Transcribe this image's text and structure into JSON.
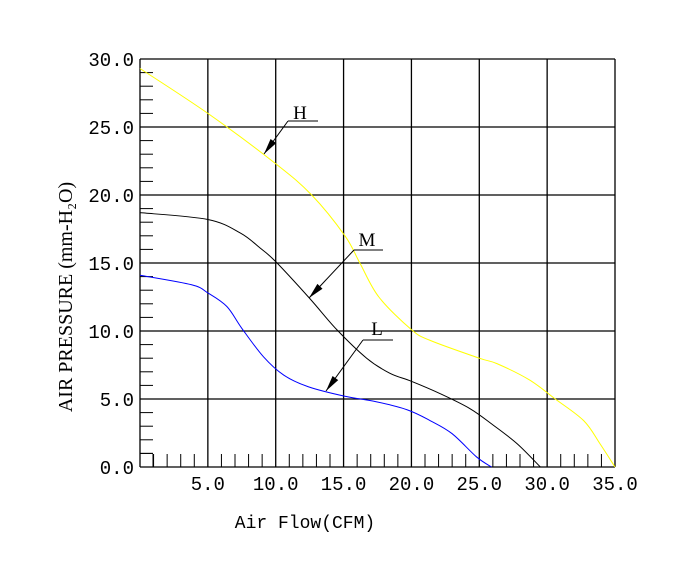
{
  "chart_data": {
    "type": "line",
    "title": "",
    "xlabel": "Air Flow(CFM)",
    "ylabel": "AIR PRESSURE (mm-H₂O)",
    "xlim": [
      0,
      35
    ],
    "ylim": [
      0,
      30
    ],
    "grid": true,
    "x_ticks": [
      "5.0",
      "10.0",
      "15.0",
      "20.0",
      "25.0",
      "30.0",
      "35.0"
    ],
    "y_ticks": [
      "0.0",
      "5.0",
      "10.0",
      "15.0",
      "20.0",
      "25.0",
      "30.0"
    ],
    "series": [
      {
        "name": "H",
        "color": "#ffff00",
        "x": [
          0,
          5,
          10,
          12.65,
          15.1,
          16.2,
          17.6,
          20,
          21.4,
          25,
          26.3,
          28.7,
          30.6,
          32.7,
          33.9,
          35
        ],
        "y": [
          29.3,
          26.0,
          22.3,
          20.0,
          17.0,
          15.0,
          12.5,
          10.1,
          9.3,
          8.0,
          7.6,
          6.4,
          5.0,
          3.4,
          1.7,
          0
        ]
      },
      {
        "name": "M",
        "color": "#000000",
        "x": [
          0,
          5,
          7.4,
          8.85,
          10,
          12.5,
          14.5,
          16.7,
          18.4,
          20,
          22.1,
          24.3,
          26.0,
          27.8,
          29.5
        ],
        "y": [
          18.7,
          18.2,
          17.2,
          16.1,
          15.1,
          12.4,
          10.1,
          8.0,
          6.9,
          6.3,
          5.4,
          4.3,
          3.1,
          1.7,
          0
        ]
      },
      {
        "name": "L",
        "color": "#0000ff",
        "x": [
          0,
          3.8,
          5,
          6.4,
          7.5,
          9.1,
          10.6,
          12.4,
          15.1,
          17.4,
          19.7,
          21.4,
          23.0,
          24.8,
          25.9
        ],
        "y": [
          14.1,
          13.4,
          12.8,
          11.8,
          10.2,
          8.1,
          6.75,
          5.9,
          5.2,
          4.8,
          4.2,
          3.4,
          2.45,
          0.74,
          0
        ]
      }
    ]
  }
}
